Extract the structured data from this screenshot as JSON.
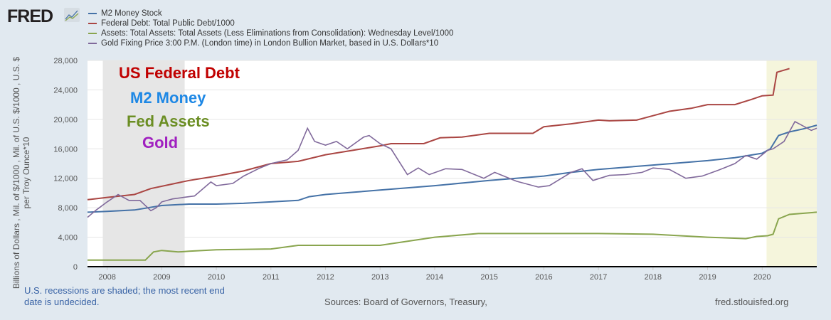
{
  "logo": "FRED",
  "legend": [
    {
      "label": "M2 Money Stock",
      "color": "#4572a7"
    },
    {
      "label": "Federal Debt: Total Public Debt/1000",
      "color": "#aa4643"
    },
    {
      "label": "Assets: Total Assets: Total Assets (Less Eliminations from Consolidation): Wednesday Level/1000",
      "color": "#89a54e"
    },
    {
      "label": "Gold Fixing Price 3:00 P.M. (London time) in London Bullion Market, based in U.S. Dollars*10",
      "color": "#80699b"
    }
  ],
  "annotations": [
    {
      "text": "US Federal Debt",
      "color": "#c00000"
    },
    {
      "text": "M2 Money",
      "color": "#1e88e5"
    },
    {
      "text": "Fed Assets",
      "color": "#6b8e23"
    },
    {
      "text": "Gold",
      "color": "#a020c0"
    }
  ],
  "footer": {
    "note": "U.S. recessions are shaded; the most recent end date is undecided.",
    "sources": "Sources: Board of Governors, Treasury,",
    "site": "fred.stlouisfed.org"
  },
  "chart_data": {
    "type": "line",
    "ylabel": "Billions of Dollars , Mil. of $/1000 , Mil. of U.S. $/1000 , U.S. $ per Troy Ounce*10",
    "xlim": [
      2007.64,
      2021.0
    ],
    "ylim": [
      0,
      28000
    ],
    "yticks": [
      0,
      4000,
      8000,
      12000,
      16000,
      20000,
      24000,
      28000
    ],
    "xticks": [
      2008,
      2009,
      2010,
      2011,
      2012,
      2013,
      2014,
      2015,
      2016,
      2017,
      2018,
      2019,
      2020
    ],
    "grid": true,
    "recessions": [
      [
        2007.92,
        2009.42,
        "#e6e6e6"
      ],
      [
        2020.08,
        2021.0,
        "#f5f5dc"
      ]
    ],
    "series": [
      {
        "name": "M2 Money Stock",
        "color": "#4572a7",
        "x": [
          2007.64,
          2008,
          2008.5,
          2009,
          2009.5,
          2010,
          2010.5,
          2011,
          2011.5,
          2011.7,
          2012,
          2012.5,
          2013,
          2014,
          2015,
          2016,
          2016.5,
          2017,
          2018,
          2019,
          2019.5,
          2020,
          2020.15,
          2020.3,
          2020.5,
          2020.75,
          2021
        ],
        "y": [
          7400,
          7500,
          7700,
          8300,
          8500,
          8500,
          8600,
          8800,
          9000,
          9500,
          9800,
          10100,
          10400,
          11000,
          11700,
          12300,
          12800,
          13200,
          13800,
          14400,
          14800,
          15400,
          16000,
          17800,
          18300,
          18700,
          19200
        ]
      },
      {
        "name": "Federal Debt: Total Public Debt/1000",
        "color": "#aa4643",
        "x": [
          2007.64,
          2008,
          2008.5,
          2008.8,
          2009.5,
          2010,
          2010.5,
          2011,
          2011.5,
          2012,
          2012.5,
          2013,
          2013.2,
          2013.8,
          2014.1,
          2014.5,
          2015,
          2015.8,
          2016,
          2016.5,
          2017,
          2017.2,
          2017.7,
          2018,
          2018.3,
          2018.7,
          2019,
          2019.5,
          2019.8,
          2020,
          2020.2,
          2020.27,
          2020.5
        ],
        "y": [
          9100,
          9400,
          9800,
          10600,
          11700,
          12300,
          13000,
          14000,
          14300,
          15200,
          15800,
          16400,
          16700,
          16700,
          17500,
          17600,
          18100,
          18100,
          19000,
          19400,
          19900,
          19800,
          19900,
          20500,
          21100,
          21500,
          22000,
          22000,
          22700,
          23200,
          23300,
          26400,
          26900
        ]
      },
      {
        "name": "Assets: Total Assets/1000",
        "color": "#89a54e",
        "x": [
          2007.64,
          2008.7,
          2008.85,
          2009,
          2009.3,
          2009.5,
          2010,
          2011,
          2011.5,
          2012,
          2013,
          2014,
          2014.8,
          2016,
          2017,
          2018,
          2019,
          2019.7,
          2019.9,
          2020.1,
          2020.2,
          2020.3,
          2020.5,
          2021
        ],
        "y": [
          900,
          900,
          2000,
          2200,
          2000,
          2100,
          2300,
          2400,
          2900,
          2900,
          2900,
          4000,
          4500,
          4500,
          4500,
          4400,
          4000,
          3800,
          4100,
          4200,
          4400,
          6500,
          7100,
          7400
        ]
      },
      {
        "name": "Gold Fixing Price*10",
        "color": "#80699b",
        "x": [
          2007.64,
          2007.8,
          2008,
          2008.2,
          2008.4,
          2008.6,
          2008.8,
          2008.9,
          2009,
          2009.2,
          2009.4,
          2009.6,
          2009.9,
          2010,
          2010.3,
          2010.5,
          2010.8,
          2011,
          2011.3,
          2011.5,
          2011.67,
          2011.8,
          2012,
          2012.2,
          2012.4,
          2012.7,
          2012.8,
          2013,
          2013.2,
          2013.5,
          2013.7,
          2013.9,
          2014.2,
          2014.5,
          2014.9,
          2015.1,
          2015.5,
          2015.9,
          2016.1,
          2016.5,
          2016.7,
          2016.9,
          2017.2,
          2017.5,
          2017.8,
          2018,
          2018.3,
          2018.6,
          2018.9,
          2019.2,
          2019.5,
          2019.7,
          2019.9,
          2020.1,
          2020.2,
          2020.4,
          2020.6,
          2020.7,
          2020.9,
          2021
        ],
        "y": [
          6700,
          7700,
          8800,
          9800,
          9000,
          9000,
          7600,
          8000,
          8800,
          9200,
          9400,
          9600,
          11500,
          11000,
          11300,
          12300,
          13400,
          14000,
          14500,
          15800,
          18800,
          17000,
          16500,
          17000,
          16000,
          17600,
          17800,
          16700,
          16000,
          12500,
          13400,
          12500,
          13300,
          13200,
          12000,
          12800,
          11600,
          10800,
          11000,
          12800,
          13300,
          11700,
          12400,
          12500,
          12800,
          13400,
          13200,
          12000,
          12300,
          13100,
          14000,
          15100,
          14600,
          15800,
          16000,
          17000,
          19700,
          19300,
          18500,
          18800
        ]
      }
    ]
  }
}
